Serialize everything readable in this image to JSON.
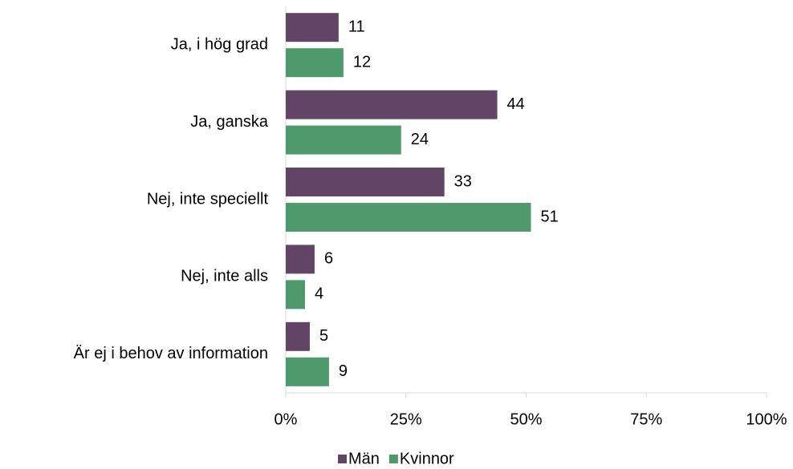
{
  "chart_data": {
    "type": "hbar",
    "categories": [
      "Ja, i hög grad",
      "Ja, ganska",
      "Nej, inte speciellt",
      "Nej, inte alls",
      "Är ej i behov av information"
    ],
    "series": [
      {
        "name": "Män",
        "color": "#614466",
        "values": [
          11,
          44,
          33,
          6,
          5
        ]
      },
      {
        "name": "Kvinnor",
        "color": "#4e9a6b",
        "values": [
          12,
          24,
          51,
          4,
          9
        ]
      }
    ],
    "xlim": [
      0,
      100
    ],
    "xticks": [
      {
        "value": 0,
        "label": "0%"
      },
      {
        "value": 25,
        "label": "25%"
      },
      {
        "value": 50,
        "label": "50%"
      },
      {
        "value": 75,
        "label": "75%"
      },
      {
        "value": 100,
        "label": "100%"
      }
    ],
    "legend": "bottom"
  }
}
